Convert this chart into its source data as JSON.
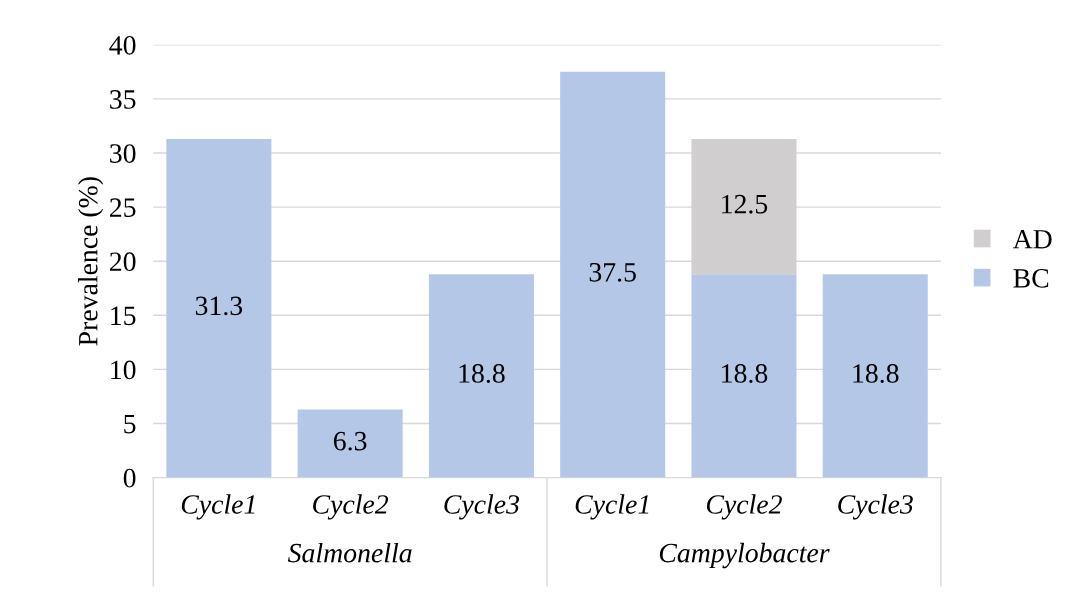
{
  "chart_data": {
    "type": "bar",
    "stacked": true,
    "ylabel": "Prevalence (%)",
    "categories": [
      "Cycle1",
      "Cycle2",
      "Cycle3",
      "Cycle1",
      "Cycle2",
      "Cycle3"
    ],
    "annotations": [
      "Salmonella",
      "Campylobacter"
    ],
    "series": [
      {
        "name": "BC",
        "color": "#b4c7e7",
        "values": [
          31.3,
          6.3,
          18.8,
          37.5,
          18.8,
          18.8
        ]
      },
      {
        "name": "AD",
        "color": "#d0cece",
        "values": [
          null,
          null,
          null,
          null,
          12.5,
          null
        ]
      }
    ],
    "ylim": [
      0,
      40
    ],
    "yticks": [
      0,
      5,
      10,
      15,
      20,
      25,
      30,
      35,
      40
    ],
    "grid": "y",
    "legend": "right",
    "data_labels": true
  }
}
